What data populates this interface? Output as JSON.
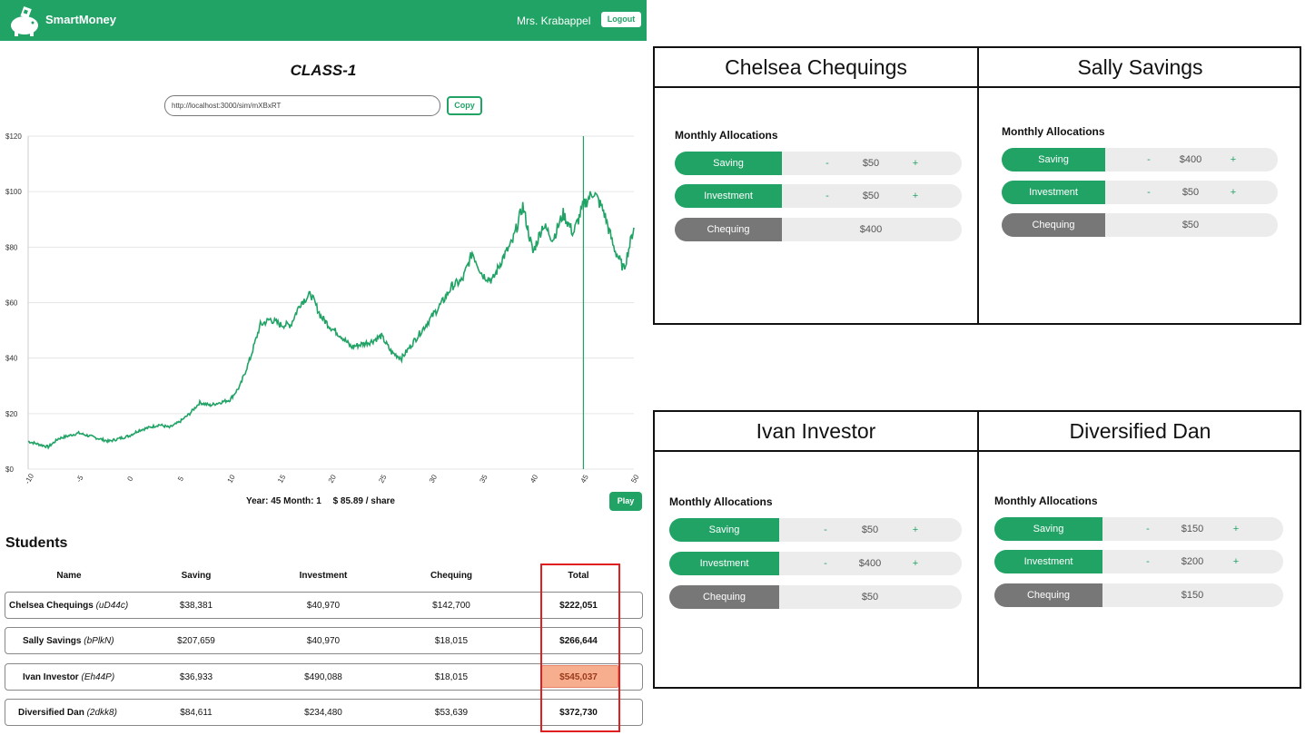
{
  "app": {
    "brand": "SmartMoney",
    "user": "Mrs. Krabappel",
    "logout_label": "Logout",
    "class_name": "CLASS-1",
    "share_url": "http://localhost:3000/sim/mXBxRT",
    "copy_label": "Copy",
    "status": {
      "year_month": "Year: 45 Month: 1",
      "price": "$ 85.89 / share"
    },
    "play_label": "Play",
    "students_heading": "Students",
    "colors": {
      "accent": "#21a366",
      "highlight": "#f7ae8e",
      "box": "#e02020"
    }
  },
  "chart_data": {
    "type": "line",
    "xlabel": "",
    "ylabel": "",
    "xlim": [
      -10,
      50
    ],
    "ylim": [
      0,
      120
    ],
    "xticks": [
      "-10",
      "-5",
      "0",
      "5",
      "10",
      "15",
      "20",
      "25",
      "30",
      "35",
      "40",
      "45",
      "50"
    ],
    "yticks": [
      "$0",
      "$20",
      "$40",
      "$60",
      "$80",
      "$100",
      "$120"
    ],
    "current_x": 45,
    "series": [
      {
        "name": "share price",
        "x": [
          -10,
          -9,
          -8,
          -7,
          -6,
          -5,
          -4,
          -3,
          -2,
          -1,
          0,
          1,
          2,
          3,
          4,
          5,
          6,
          7,
          8,
          9,
          10,
          11,
          12,
          13,
          14,
          15,
          16,
          17,
          18,
          19,
          20,
          21,
          22,
          23,
          24,
          25,
          26,
          27,
          28,
          29,
          30,
          31,
          32,
          33,
          34,
          35,
          36,
          37,
          38,
          39,
          40,
          41,
          42,
          43,
          44,
          45,
          46,
          47,
          48,
          49,
          50
        ],
        "y": [
          10,
          9,
          8,
          11,
          12,
          13,
          12,
          11,
          10,
          11,
          12,
          14,
          15,
          16,
          15,
          17,
          20,
          24,
          23,
          24,
          25,
          30,
          40,
          52,
          54,
          52,
          52,
          60,
          63,
          55,
          51,
          48,
          44,
          45,
          46,
          48,
          42,
          40,
          45,
          50,
          55,
          60,
          66,
          68,
          78,
          70,
          68,
          76,
          82,
          95,
          78,
          88,
          83,
          92,
          85,
          95,
          100,
          93,
          80,
          72,
          87
        ]
      }
    ]
  },
  "table": {
    "headers": {
      "name": "Name",
      "saving": "Saving",
      "investment": "Investment",
      "chequing": "Chequing",
      "total": "Total"
    },
    "rows": [
      {
        "name": "Chelsea Chequings",
        "code": "(uD44c)",
        "saving": "$38,381",
        "investment": "$40,970",
        "chequing": "$142,700",
        "total": "$222,051"
      },
      {
        "name": "Sally Savings",
        "code": "(bPlkN)",
        "saving": "$207,659",
        "investment": "$40,970",
        "chequing": "$18,015",
        "total": "$266,644"
      },
      {
        "name": "Ivan Investor",
        "code": "(Eh44P)",
        "saving": "$36,933",
        "investment": "$490,088",
        "chequing": "$18,015",
        "total": "$545,037"
      },
      {
        "name": "Diversified Dan",
        "code": "(2dkk8)",
        "saving": "$84,611",
        "investment": "$234,480",
        "chequing": "$53,639",
        "total": "$372,730"
      }
    ]
  },
  "panels": [
    {
      "title": "Chelsea Chequings",
      "heading": "Monthly Allocations",
      "saving": "Saving",
      "saving_val": "$50",
      "investment": "Investment",
      "investment_val": "$50",
      "chequing": "Chequing",
      "chequing_val": "$400"
    },
    {
      "title": "Sally Savings",
      "heading": "Monthly Allocations",
      "saving": "Saving",
      "saving_val": "$400",
      "investment": "Investment",
      "investment_val": "$50",
      "chequing": "Chequing",
      "chequing_val": "$50"
    },
    {
      "title": "Ivan Investor",
      "heading": "Monthly Allocations",
      "saving": "Saving",
      "saving_val": "$50",
      "investment": "Investment",
      "investment_val": "$400",
      "chequing": "Chequing",
      "chequing_val": "$50"
    },
    {
      "title": "Diversified Dan",
      "heading": "Monthly Allocations",
      "saving": "Saving",
      "saving_val": "$150",
      "investment": "Investment",
      "investment_val": "$200",
      "chequing": "Chequing",
      "chequing_val": "$150"
    }
  ],
  "symbols": {
    "minus": "-",
    "plus": "+"
  }
}
